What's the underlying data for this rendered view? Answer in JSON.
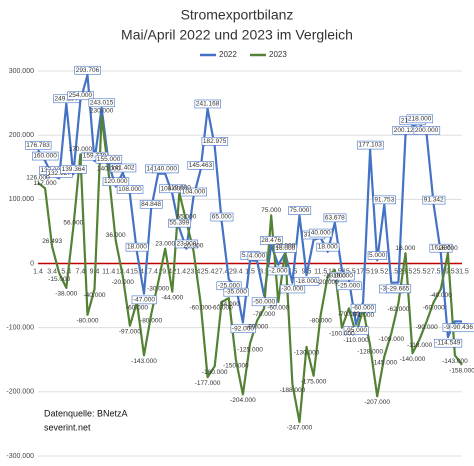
{
  "chart_data": {
    "type": "line",
    "title": "Stromexportbilanz",
    "subtitle": "Mai/April 2022 und 2023 im Vergleich",
    "source": "Datenquelle: BNetzA",
    "site": "severint.net",
    "categories": [
      "1.4",
      null,
      "3.4",
      null,
      "5.4",
      null,
      "7.4",
      null,
      "9.4",
      null,
      "11.4",
      null,
      "13.4",
      null,
      "15.4",
      null,
      "17.4",
      null,
      "19.4",
      null,
      "21.4",
      null,
      "23.4",
      null,
      "25.4",
      null,
      "27.4",
      null,
      "29.4",
      null,
      "1.5",
      null,
      "3.5",
      null,
      "5.5",
      null,
      "7.5",
      null,
      "9.5",
      null,
      "11.5",
      null,
      "13.5",
      null,
      "15.5",
      null,
      "17.5",
      null,
      "19.5",
      null,
      "21.5",
      null,
      "23.5",
      null,
      "25.5",
      null,
      "27.5",
      null,
      "29.5",
      null,
      "31.5"
    ],
    "series": [
      {
        "name": "2022",
        "color": "#4472c4",
        "values": [
          176783,
          160000,
          137232,
          132827,
          249280,
          139364,
          254000,
          293706,
          159778,
          243015,
          155000,
          120000,
          141402,
          108000,
          18000,
          -47000,
          84848,
          140000,
          140000,
          109008,
          55399,
          23000,
          104000,
          145463,
          241168,
          182975,
          65000,
          -25000,
          -35000,
          -92000,
          5000,
          4000,
          -50000,
          28476,
          -2000,
          16000,
          -30000,
          75000,
          -18000,
          37000,
          40000,
          18000,
          63678,
          -10000,
          -25000,
          -95000,
          -60000,
          177103,
          5000,
          91753,
          -30000,
          -29665,
          200124,
          215000,
          218000,
          200000,
          91342,
          16396,
          -114549,
          -90000,
          -90436
        ],
        "value_labels": [
          "176.783",
          "160.000",
          "137.232",
          "132.827",
          "249.280",
          "139.364",
          "254.000",
          "293.706",
          "159.778",
          "243.015",
          "155.000",
          "120.000",
          "141.402",
          "108.000",
          "18.000",
          "-47.000",
          "84.848",
          "140.000",
          "140.000",
          "109.008",
          "55.399",
          "23.000",
          "104.000",
          "145.463",
          "241.168",
          "182.975",
          "65.000",
          "-25.000",
          "-35.000",
          "-92.000",
          "5.000",
          "4.000",
          "-50.000",
          "28.476",
          "-2.000",
          "16.000",
          "-30.000",
          "75.000",
          "-18.000",
          "37.000",
          "40.000",
          "18.000",
          "63.678",
          "-10.000",
          "-25.000",
          "-95.000",
          "-60.000",
          "177.103",
          "5.000",
          "91.753",
          "-30.000",
          "-29.665",
          "200.124",
          "215.000",
          "218.000",
          "200.000",
          "91.342",
          "16.396",
          "-114.549",
          "-90.000",
          "-90.436"
        ]
      },
      {
        "name": "2023",
        "color": "#548235",
        "values": [
          126000,
          117000,
          26493,
          -15000,
          -38000,
          56000,
          170000,
          -80000,
          -40000,
          230000,
          140000,
          36000,
          -20000,
          -97000,
          -60000,
          -143000,
          -80000,
          -30000,
          23000,
          -44000,
          110000,
          65000,
          20000,
          -60000,
          -177000,
          -160000,
          -60000,
          -54000,
          -150000,
          -204000,
          -125000,
          -89000,
          -70000,
          75000,
          -60000,
          20000,
          -188000,
          -247000,
          -130000,
          -175000,
          -80000,
          -20000,
          -10000,
          -100000,
          -70000,
          -110000,
          -71000,
          -128000,
          -207000,
          -145000,
          -109000,
          -62000,
          16000,
          -140000,
          -118000,
          -90000,
          -60000,
          -40000,
          16000,
          -143000,
          -158000
        ],
        "value_labels": [
          "126.000",
          "117.000",
          "26.493",
          "-15.000",
          "-38.000",
          "56.000",
          "170.000",
          "-80.000",
          "-40.000",
          "230.000",
          "140.000",
          "36.000",
          "-20.000",
          "-97.000",
          "-60.000",
          "-143.000",
          "-80.000",
          "-30.000",
          "23.000",
          "-44.000",
          "110.000",
          "65.000",
          "20.000",
          "-60.000",
          "-177.000",
          "-160.000",
          "-60.000",
          "-54.000",
          "-150.000",
          "-204.000",
          "-125.000",
          "-89.000",
          "-70.000",
          "75.000",
          "-60.000",
          "20.000",
          "-188.000",
          "-247.000",
          "-130.000",
          "-175.000",
          "-80.000",
          "-20.000",
          "-10.000",
          "-100.000",
          "-70.000",
          "-110.000",
          "-71.000",
          "-128.000",
          "-207.000",
          "-145.000",
          "-109.000",
          "-62.000",
          "16.000",
          "-140.000",
          "-118.000",
          "-90.000",
          "-60.000",
          "-40.000",
          "16.000",
          "-143.000",
          "-158.000"
        ]
      }
    ],
    "ylim": [
      -300000,
      300000
    ],
    "yticks": [
      {
        "value": -300000,
        "label": "-300.000"
      },
      {
        "value": -200000,
        "label": "-200.000"
      },
      {
        "value": -100000,
        "label": "-100.000"
      },
      0,
      {
        "value": 100000,
        "label": "100.000"
      },
      {
        "value": 200000,
        "label": "200.000"
      },
      {
        "value": 300000,
        "label": "300.000"
      }
    ],
    "grid": true,
    "zero_line_color": "#c00000",
    "legend": "top"
  }
}
